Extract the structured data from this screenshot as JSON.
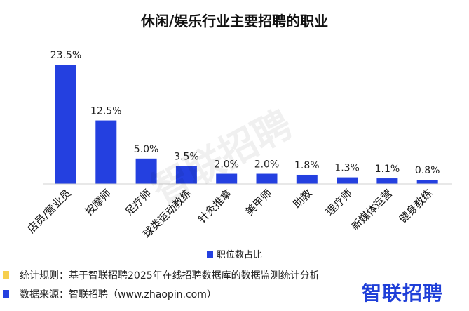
{
  "chart_data": {
    "type": "bar",
    "title": "休闲/娱乐行业主要招聘的职业",
    "categories": [
      "店员/营业员",
      "按摩师",
      "足疗师",
      "球类运动教练",
      "针灸推拿",
      "美甲师",
      "助教",
      "理疗师",
      "新媒体运营",
      "健身教练"
    ],
    "series": [
      {
        "name": "职位数占比",
        "values": [
          23.5,
          12.5,
          5.0,
          3.5,
          2.0,
          2.0,
          1.8,
          1.3,
          1.1,
          0.8
        ]
      }
    ],
    "data_labels": [
      "23.5%",
      "12.5%",
      "5.0%",
      "3.5%",
      "2.0%",
      "2.0%",
      "1.8%",
      "1.3%",
      "1.1%",
      "0.8%"
    ],
    "unit": "%",
    "ylim": [
      0,
      23.5
    ],
    "grid": false,
    "legend_position": "bottom",
    "bar_color": "#2440e0"
  },
  "footer": {
    "rule_text": "统计规则：基于智联招聘2025年在线招聘数据库的数据监测统计分析",
    "source_text": "数据来源：智联招聘（www.zhaopin.com）",
    "rule_marker_color": "#f6cf4e",
    "source_marker_color": "#2440e0"
  },
  "brand": {
    "logo_text": "智联招聘",
    "watermark_text": "智联招聘"
  }
}
